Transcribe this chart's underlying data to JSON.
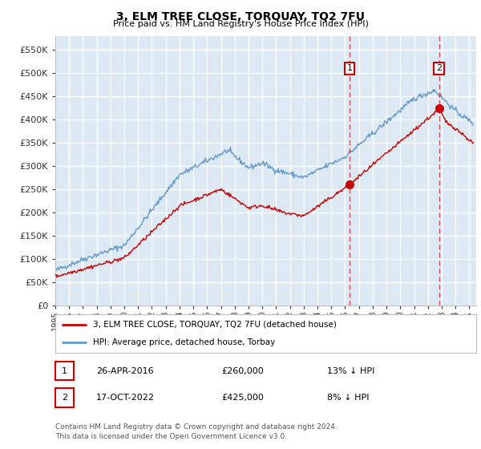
{
  "title": "3, ELM TREE CLOSE, TORQUAY, TQ2 7FU",
  "subtitle": "Price paid vs. HM Land Registry's House Price Index (HPI)",
  "ylabel_ticks": [
    "£0",
    "£50K",
    "£100K",
    "£150K",
    "£200K",
    "£250K",
    "£300K",
    "£350K",
    "£400K",
    "£450K",
    "£500K",
    "£550K"
  ],
  "ytick_values": [
    0,
    50000,
    100000,
    150000,
    200000,
    250000,
    300000,
    350000,
    400000,
    450000,
    500000,
    550000
  ],
  "ylim": [
    0,
    580000
  ],
  "xlim_start": 1995.0,
  "xlim_end": 2025.5,
  "plot_bg_color": "#dce9f5",
  "grid_color": "#ffffff",
  "red_line_color": "#cc0000",
  "blue_line_color": "#6699cc",
  "marker1_x": 2016.32,
  "marker1_y": 260000,
  "marker2_x": 2022.8,
  "marker2_y": 425000,
  "marker1_label": "26-APR-2016",
  "marker1_price": "£260,000",
  "marker1_pct": "13% ↓ HPI",
  "marker2_label": "17-OCT-2022",
  "marker2_price": "£425,000",
  "marker2_pct": "8% ↓ HPI",
  "legend_line1": "3, ELM TREE CLOSE, TORQUAY, TQ2 7FU (detached house)",
  "legend_line2": "HPI: Average price, detached house, Torbay",
  "footnote": "Contains HM Land Registry data © Crown copyright and database right 2024.\nThis data is licensed under the Open Government Licence v3.0.",
  "xticks": [
    1995,
    1996,
    1997,
    1998,
    1999,
    2000,
    2001,
    2002,
    2003,
    2004,
    2005,
    2006,
    2007,
    2008,
    2009,
    2010,
    2011,
    2012,
    2013,
    2014,
    2015,
    2016,
    2017,
    2018,
    2019,
    2020,
    2021,
    2022,
    2023,
    2024,
    2025
  ]
}
